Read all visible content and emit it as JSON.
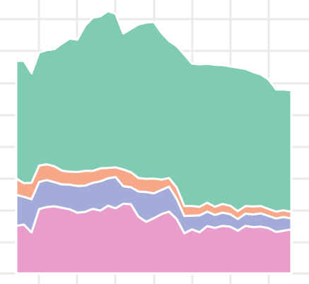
{
  "chart_data": {
    "type": "area",
    "stacked": true,
    "title": "",
    "xlabel": "",
    "ylabel": "",
    "grid": true,
    "legend": "none",
    "x": [
      1,
      2,
      3,
      4,
      5,
      6,
      7,
      8,
      9,
      10,
      11,
      12,
      13,
      14,
      15,
      16,
      17,
      18,
      19,
      20,
      21,
      22,
      23,
      24,
      25,
      26,
      27,
      28,
      29,
      30,
      31,
      32,
      33,
      34,
      35,
      36,
      37
    ],
    "xlim": [
      1,
      37
    ],
    "ylim": [
      0,
      100
    ],
    "series": [
      {
        "color": "#e99dcb",
        "values": [
          18.7,
          19.2,
          16.1,
          25.3,
          26.1,
          26.4,
          25.8,
          25.2,
          23.9,
          24.2,
          25.4,
          24.7,
          26.6,
          25.6,
          27.4,
          27.2,
          22.3,
          20.3,
          21.7,
          23.3,
          24.3,
          21.4,
          15.8,
          17.3,
          16.2,
          18.6,
          17.9,
          18.7,
          18.4,
          16.8,
          18.7,
          18.2,
          18.4,
          17.8,
          16.3,
          16.8,
          17.3
        ]
      },
      {
        "color": "#a3acd8",
        "values": [
          12.2,
          10.9,
          13.1,
          10.7,
          10.6,
          9.5,
          9.2,
          9.7,
          10.5,
          10.3,
          10.2,
          11.5,
          10.8,
          12.3,
          6.9,
          6.7,
          9.9,
          11.7,
          9.8,
          9.5,
          9.8,
          7.9,
          6.8,
          5.4,
          6.6,
          5.7,
          5.1,
          5.2,
          4.9,
          4.6,
          4.8,
          5.0,
          5.2,
          4.8,
          5.3,
          5.4,
          4.3
        ]
      },
      {
        "color": "#f6a888",
        "values": [
          6.4,
          5.4,
          6.4,
          6.4,
          6.2,
          6.2,
          5.4,
          5.1,
          5.5,
          5.8,
          4.7,
          5.1,
          4.1,
          3.8,
          6.6,
          5.9,
          5.3,
          5.2,
          5.8,
          4.1,
          3.4,
          4.5,
          3.9,
          3.8,
          3.4,
          3.5,
          3.2,
          3.4,
          3.3,
          3.1,
          3.0,
          3.1,
          2.9,
          2.8,
          2.7,
          2.6,
          2.6
        ]
      },
      {
        "color": "#7fcbb3",
        "values": [
          46.2,
          48.1,
          43.1,
          44.5,
          44.9,
          46.1,
          50.0,
          52.3,
          52.0,
          57.1,
          60.2,
          59.8,
          61.6,
          60.4,
          53.4,
          56.3,
          60.4,
          61.4,
          61.6,
          57.7,
          53.9,
          55.6,
          59.5,
          56.0,
          56.0,
          54.6,
          55.8,
          54.6,
          54.8,
          56.4,
          53.9,
          52.9,
          51.7,
          50.9,
          48.0,
          47.5,
          47.8
        ]
      }
    ]
  }
}
